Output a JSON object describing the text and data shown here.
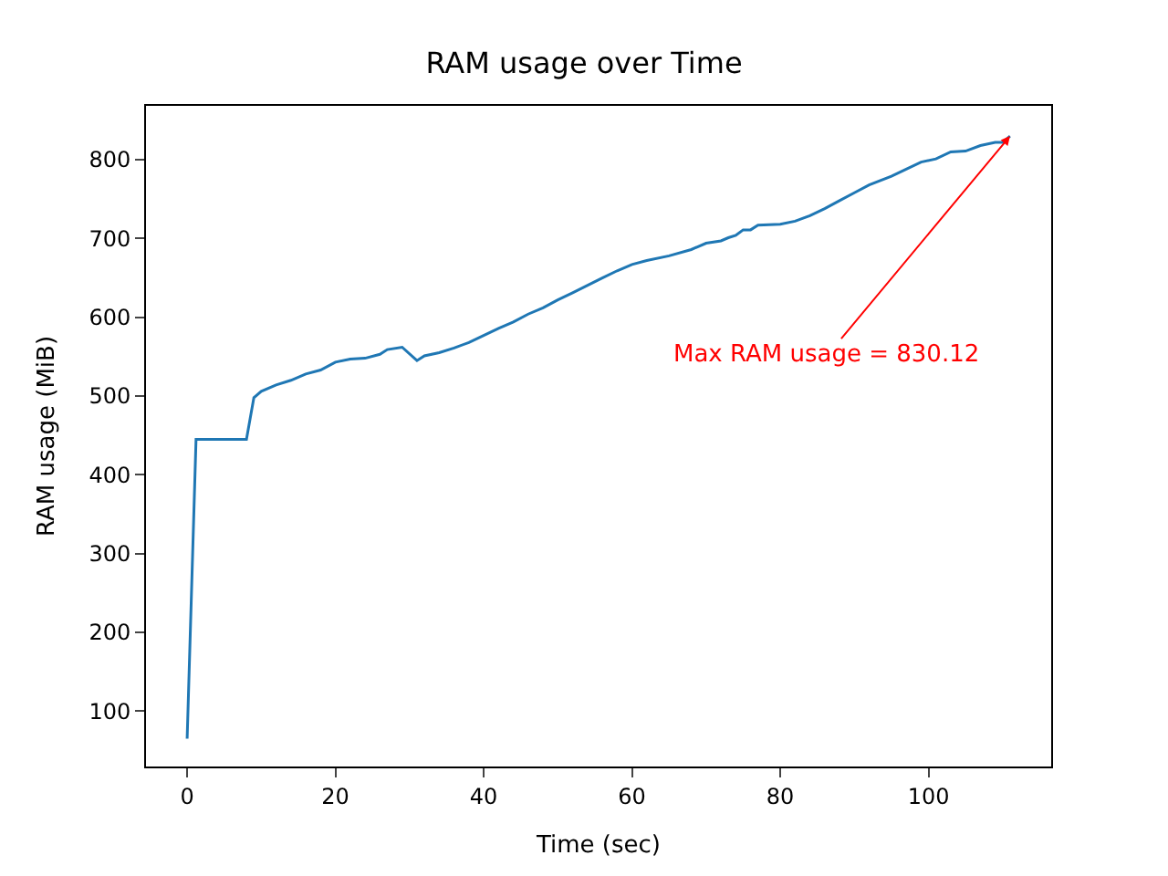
{
  "chart_data": {
    "type": "line",
    "title": "RAM usage over Time",
    "xlabel": "Time (sec)",
    "ylabel": "RAM usage (MiB)",
    "x": [
      0,
      1.2,
      8,
      9,
      10,
      12,
      14,
      16,
      18,
      20,
      22,
      24,
      26,
      27,
      29,
      31,
      32,
      34,
      36,
      38,
      40,
      42,
      44,
      46,
      48,
      50,
      52,
      56,
      58,
      60,
      62,
      65,
      68,
      70,
      72,
      73,
      74,
      75,
      76,
      77,
      80,
      82,
      84,
      86,
      88,
      90,
      92,
      95,
      97,
      99,
      101,
      103,
      105,
      107,
      109,
      110,
      111
    ],
    "series": [
      {
        "color": "#1f77b4",
        "values": [
          65,
          445,
          445,
          498,
          506,
          514,
          520,
          528,
          533,
          543,
          547,
          548,
          553,
          559,
          562,
          545,
          551,
          555,
          561,
          568,
          577,
          586,
          594,
          604,
          612,
          622,
          631,
          650,
          659,
          667,
          672,
          678,
          686,
          694,
          697,
          701,
          704,
          711,
          711,
          717,
          718,
          722,
          729,
          738,
          748,
          758,
          768,
          779,
          788,
          797,
          801,
          810,
          811,
          818,
          822,
          822,
          830.12
        ]
      }
    ],
    "xlim": [
      -5.55,
      116.55
    ],
    "ylim": [
      29.7,
      868.4
    ],
    "xticks": [
      0,
      20,
      40,
      60,
      80,
      100
    ],
    "yticks": [
      100,
      200,
      300,
      400,
      500,
      600,
      700,
      800
    ],
    "annotations": [
      {
        "text": "Max RAM usage = 830.12",
        "x": 111,
        "y": 830.12
      }
    ],
    "legend": false,
    "marker": "none",
    "line_style": "solid"
  }
}
